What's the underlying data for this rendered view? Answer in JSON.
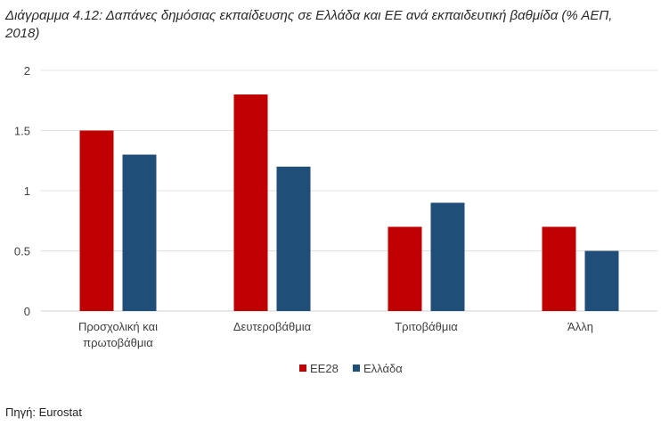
{
  "chart_data": {
    "type": "bar",
    "title": "Διάγραμμα 4.12: Δαπάνες δημόσιας εκπαίδευσης σε Ελλάδα και ΕΕ ανά εκπαιδευτική βαθμίδα (% ΑΕΠ, 2018)",
    "categories": [
      [
        "Προσχολική και",
        "πρωτοβάθμια"
      ],
      [
        "Δευτεροβάθμια"
      ],
      [
        "Τριτοβάθμια"
      ],
      [
        "Άλλη"
      ]
    ],
    "series": [
      {
        "name": "ΕΕ28",
        "color": "#c00000",
        "values": [
          1.5,
          1.8,
          0.7,
          0.7
        ]
      },
      {
        "name": "Ελλάδα",
        "color": "#1f4e79",
        "values": [
          1.3,
          1.2,
          0.9,
          0.5
        ]
      }
    ],
    "ylim": [
      0,
      2
    ],
    "yticks": [
      {
        "value": 0,
        "label": "0"
      },
      {
        "value": 0.5,
        "label": "0.5"
      },
      {
        "value": 1,
        "label": "1"
      },
      {
        "value": 1.5,
        "label": "1.5"
      },
      {
        "value": 2,
        "label": "2"
      }
    ],
    "grid": true,
    "legend_position": "bottom",
    "xlabel": "",
    "ylabel": ""
  },
  "source": "Πηγή: Eurostat"
}
